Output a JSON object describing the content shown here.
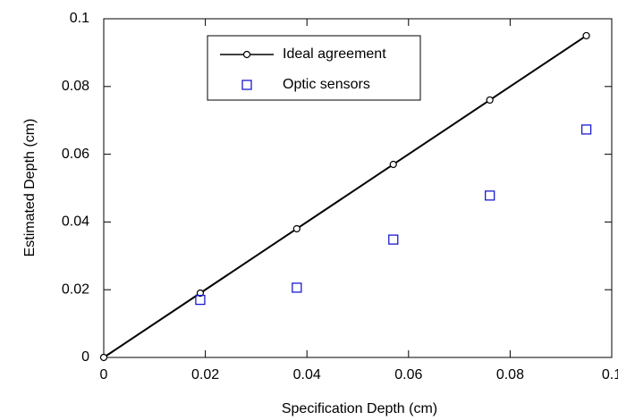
{
  "chart_data": {
    "type": "scatter",
    "xlabel": "Specification Depth (cm)",
    "ylabel": "Estimated Depth (cm)",
    "xlim": [
      0,
      0.1
    ],
    "ylim": [
      0,
      0.1
    ],
    "xticks": [
      0,
      0.02,
      0.04,
      0.06,
      0.08,
      0.1
    ],
    "yticks": [
      0,
      0.02,
      0.04,
      0.06,
      0.08,
      0.1
    ],
    "series": [
      {
        "name": "Ideal agreement",
        "color": "#000000",
        "marker": "circle",
        "line": true,
        "x": [
          0,
          0.019,
          0.038,
          0.057,
          0.076,
          0.095
        ],
        "values": [
          0,
          0.019,
          0.038,
          0.057,
          0.076,
          0.095
        ]
      },
      {
        "name": "Optic sensors",
        "color": "#1a1ad0",
        "marker": "square",
        "line": false,
        "x": [
          0.019,
          0.038,
          0.057,
          0.076,
          0.095
        ],
        "values": [
          0.017,
          0.0206,
          0.0348,
          0.0478,
          0.0673
        ]
      }
    ]
  }
}
